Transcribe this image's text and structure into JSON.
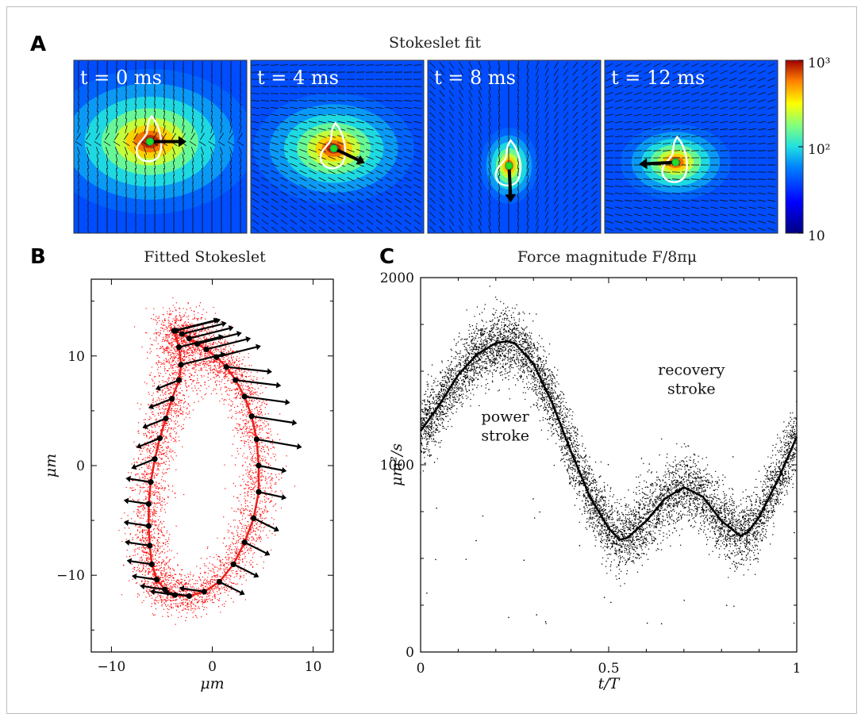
{
  "panels": {
    "a": {
      "letter": "A",
      "title": "Stokeslet fit"
    },
    "b": {
      "letter": "B",
      "title": "Fitted Stokeslet"
    },
    "c": {
      "letter": "C",
      "title": "Force magnitude  F/8πμ"
    }
  },
  "chart_data": [
    {
      "type": "heatmap",
      "title": "Stokeslet fit",
      "frames": [
        {
          "label": "t = 0 ms",
          "center": [
            0.44,
            0.47
          ],
          "spread": "wide",
          "force_dir": "right"
        },
        {
          "label": "t = 4 ms",
          "center": [
            0.48,
            0.51
          ],
          "spread": "medium",
          "force_dir": "right-down"
        },
        {
          "label": "t = 8 ms",
          "center": [
            0.47,
            0.61
          ],
          "spread": "narrow",
          "force_dir": "down"
        },
        {
          "label": "t = 12 ms",
          "center": [
            0.41,
            0.59
          ],
          "spread": "narrow",
          "force_dir": "left"
        }
      ],
      "colorbar": {
        "scale": "log",
        "ticks": [
          "10",
          "10²",
          "10³"
        ],
        "range": [
          10,
          1000
        ]
      },
      "colors": {
        "low": "#00007f",
        "mid_low": "#0080ff",
        "mid": "#7fff7f",
        "mid_high": "#ffb000",
        "high": "#b00000",
        "outline": "#ffffff",
        "marker": "#22dd22"
      }
    },
    {
      "type": "scatter",
      "title": "Fitted Stokeslet",
      "xlabel": "μm",
      "ylabel": "μm",
      "xlim": [
        -12,
        12
      ],
      "ylim": [
        -17,
        17
      ],
      "xticks": [
        "−10",
        "0",
        "10"
      ],
      "yticks": [
        "−10",
        "0",
        "10"
      ],
      "series": [
        {
          "role": "trajectory",
          "color": "#e8201a",
          "x": [
            -3.8,
            -3.3,
            -3.1,
            -3.3,
            -4.0,
            -4.6,
            -5.2,
            -5.7,
            -6.1,
            -6.3,
            -6.3,
            -6.2,
            -6.0,
            -5.5,
            -4.7,
            -3.7,
            -2.3,
            -0.8,
            0.7,
            2.1,
            3.2,
            4.1,
            4.6,
            4.6,
            4.4,
            3.9,
            3.2,
            2.3,
            1.4,
            0.4,
            -0.6,
            -1.5,
            -2.3,
            -3.0,
            -3.6
          ],
          "y": [
            12.3,
            10.8,
            9.2,
            7.8,
            6.1,
            4.3,
            2.5,
            0.6,
            -1.5,
            -3.5,
            -5.5,
            -7.3,
            -9.0,
            -10.4,
            -11.3,
            -11.8,
            -11.9,
            -11.5,
            -10.6,
            -9.0,
            -7.0,
            -4.8,
            -2.4,
            0.0,
            2.4,
            4.5,
            6.3,
            7.8,
            9.0,
            9.9,
            10.6,
            11.1,
            11.6,
            12.0,
            12.3
          ]
        },
        {
          "role": "scatter-cloud",
          "color": "#ff0000",
          "description": "individual fit positions around trajectory"
        }
      ],
      "vectors_note": "black arrows show fitted force direction along trajectory; large rightward arrows on upper right (power stroke), small arrows pointing outward-left on left side"
    },
    {
      "type": "scatter",
      "title": "Force magnitude  F/8πμ",
      "xlabel": "t/T",
      "ylabel": "μm²/s",
      "xlim": [
        0,
        1
      ],
      "ylim": [
        0,
        2000
      ],
      "xticks": [
        "0",
        "0.5",
        "1"
      ],
      "yticks": [
        "0",
        "1000",
        "2000"
      ],
      "series": [
        {
          "role": "mean-curve",
          "color": "#000000",
          "x": [
            0,
            0.05,
            0.1,
            0.15,
            0.2,
            0.23,
            0.25,
            0.3,
            0.35,
            0.4,
            0.45,
            0.5,
            0.53,
            0.55,
            0.6,
            0.65,
            0.7,
            0.75,
            0.8,
            0.85,
            0.87,
            0.9,
            0.95,
            1.0
          ],
          "y": [
            1180,
            1320,
            1480,
            1590,
            1650,
            1660,
            1650,
            1540,
            1330,
            1070,
            830,
            660,
            600,
            610,
            700,
            820,
            880,
            830,
            700,
            620,
            640,
            720,
            920,
            1150
          ]
        },
        {
          "role": "raw-scatter",
          "color": "#000000",
          "spread": 90
        }
      ],
      "annotations": [
        {
          "text_lines": [
            "power",
            "stroke"
          ],
          "at": [
            0.225,
            1230
          ]
        },
        {
          "text_lines": [
            "recovery",
            "stroke"
          ],
          "at": [
            0.72,
            1480
          ]
        }
      ]
    }
  ]
}
